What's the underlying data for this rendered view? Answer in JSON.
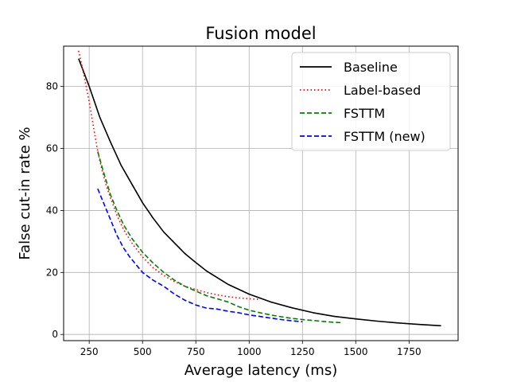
{
  "chart_data": {
    "type": "line",
    "title": "Fusion model",
    "xlabel": "Average latency (ms)",
    "ylabel": "False cut-in rate %",
    "xlim": [
      130,
      1980
    ],
    "ylim": [
      -2,
      93
    ],
    "xticks": [
      250,
      500,
      750,
      1000,
      1250,
      1500,
      1750
    ],
    "yticks": [
      0,
      20,
      40,
      60,
      80
    ],
    "grid": true,
    "legend_position": "top-right",
    "series": [
      {
        "name": "Baseline",
        "color": "#000000",
        "style": "solid",
        "x": [
          200,
          250,
          300,
          350,
          400,
          450,
          500,
          550,
          600,
          650,
          700,
          750,
          800,
          900,
          1000,
          1100,
          1200,
          1300,
          1400,
          1500,
          1600,
          1700,
          1800,
          1900
        ],
        "y": [
          89,
          80,
          70,
          62,
          54.5,
          48.5,
          42.5,
          37.5,
          33,
          29.5,
          26,
          23.2,
          20.5,
          16.2,
          13,
          10.5,
          8.6,
          7,
          5.8,
          5,
          4.3,
          3.7,
          3.2,
          2.8
        ]
      },
      {
        "name": "Label-based",
        "color": "#ff0000",
        "style": "dotted",
        "x": [
          200,
          215,
          230,
          250,
          270,
          290,
          310,
          330,
          350,
          380,
          410,
          450,
          500,
          550,
          600,
          650,
          700,
          750,
          800,
          850,
          900,
          950,
          1000,
          1050
        ],
        "y": [
          91.5,
          87,
          82,
          75,
          67,
          59,
          53,
          48,
          44,
          38.5,
          34,
          29.5,
          25,
          21.5,
          19,
          17,
          15.5,
          14.5,
          13.5,
          12.8,
          12.2,
          11.8,
          11.5,
          11.3
        ]
      },
      {
        "name": "FSTTM",
        "color": "#008000",
        "style": "dashed",
        "x": [
          290,
          310,
          330,
          350,
          380,
          410,
          450,
          500,
          550,
          600,
          650,
          700,
          750,
          800,
          850,
          900,
          950,
          1000,
          1050,
          1100,
          1150,
          1200,
          1250,
          1300,
          1350,
          1400,
          1430
        ],
        "y": [
          59,
          54,
          49.5,
          45,
          40,
          35.5,
          31,
          26.5,
          23,
          20,
          17.5,
          15.5,
          14,
          12.5,
          11.5,
          10.5,
          9,
          7.8,
          7,
          6.3,
          5.7,
          5.2,
          4.8,
          4.5,
          4.2,
          3.9,
          3.8
        ]
      },
      {
        "name": "FSTTM (new)",
        "color": "#0000ff",
        "style": "dashed",
        "x": [
          290,
          320,
          350,
          380,
          410,
          440,
          470,
          500,
          550,
          600,
          650,
          700,
          750,
          800,
          850,
          900,
          950,
          1000,
          1050,
          1100,
          1150,
          1200,
          1250
        ],
        "y": [
          47,
          42,
          37,
          32,
          28,
          25,
          22.5,
          20,
          17.5,
          15.5,
          13,
          11,
          9.5,
          8.5,
          8.2,
          7.5,
          7,
          6.3,
          5.8,
          5.3,
          4.8,
          4.4,
          4.1
        ]
      }
    ]
  }
}
